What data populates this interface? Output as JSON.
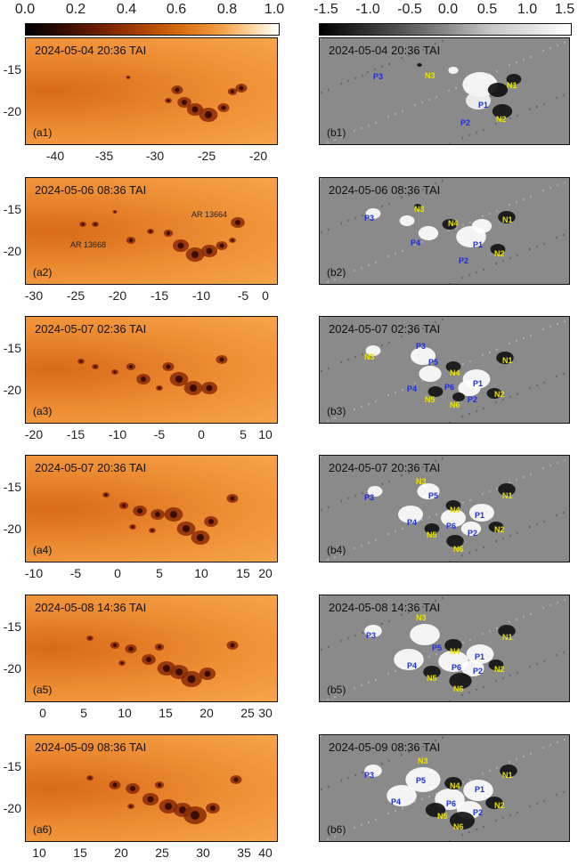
{
  "colorbars": {
    "intensity": [
      "0.0",
      "0.2",
      "0.4",
      "0.6",
      "0.8",
      "1.0"
    ],
    "field": [
      "-1.5",
      "-1.0",
      "-0.5",
      "0.0",
      "0.5",
      "1.0",
      "1.5"
    ]
  },
  "rows": [
    {
      "timestamp": "2024-05-04 20:36 TAI",
      "left_tag": "(a1)",
      "right_tag": "(b1)",
      "yticks": [
        "-15",
        "-20"
      ],
      "xticks": [
        "-40",
        "-35",
        "-30",
        "-25",
        "-20"
      ],
      "ar_labels": [],
      "polarity_labels": [
        "P3",
        "N3",
        "N1",
        "P1",
        "P2",
        "N2"
      ]
    },
    {
      "timestamp": "2024-05-06 08:36 TAI",
      "left_tag": "(a2)",
      "right_tag": "(b2)",
      "yticks": [
        "-15",
        "-20"
      ],
      "xticks": [
        "-30",
        "-25",
        "-20",
        "-15",
        "-10",
        "-5",
        "0"
      ],
      "ar_labels": [
        "AR 13664",
        "AR 13668"
      ],
      "polarity_labels": [
        "P3",
        "N3",
        "N4",
        "N1",
        "P4",
        "P1",
        "N2",
        "P2"
      ]
    },
    {
      "timestamp": "2024-05-07 02:36 TAI",
      "left_tag": "(a3)",
      "right_tag": "(b3)",
      "yticks": [
        "-15",
        "-20"
      ],
      "xticks": [
        "-20",
        "-15",
        "-10",
        "-5",
        "0",
        "5",
        "10"
      ],
      "ar_labels": [],
      "polarity_labels": [
        "N3",
        "P3",
        "P5",
        "N4",
        "N1",
        "P4",
        "P6",
        "P1",
        "N5",
        "N6",
        "P2",
        "N2"
      ]
    },
    {
      "timestamp": "2024-05-07 20:36 TAI",
      "left_tag": "(a4)",
      "right_tag": "(b4)",
      "yticks": [
        "-15",
        "-20"
      ],
      "xticks": [
        "-10",
        "-5",
        "0",
        "5",
        "10",
        "15",
        "20"
      ],
      "ar_labels": [],
      "polarity_labels": [
        "N3",
        "P3",
        "P5",
        "N1",
        "N4",
        "P1",
        "P4",
        "P6",
        "N5",
        "P2",
        "N2",
        "N6"
      ]
    },
    {
      "timestamp": "2024-05-08 14:36 TAI",
      "left_tag": "(a5)",
      "right_tag": "(b5)",
      "yticks": [
        "-15",
        "-20"
      ],
      "xticks": [
        "0",
        "5",
        "10",
        "15",
        "20",
        "25",
        "30"
      ],
      "ar_labels": [],
      "polarity_labels": [
        "N3",
        "P3",
        "N1",
        "P5",
        "N4",
        "P1",
        "P4",
        "P6",
        "N2",
        "P2",
        "N5",
        "N6"
      ]
    },
    {
      "timestamp": "2024-05-09 08:36 TAI",
      "left_tag": "(a6)",
      "right_tag": "(b6)",
      "yticks": [
        "-15",
        "-20"
      ],
      "xticks": [
        "10",
        "15",
        "20",
        "25",
        "30",
        "35",
        "40"
      ],
      "ar_labels": [],
      "polarity_labels": [
        "N3",
        "N1",
        "P3",
        "P5",
        "N4",
        "P1",
        "P4",
        "P6",
        "N2",
        "N5",
        "P2",
        "N6"
      ]
    }
  ]
}
